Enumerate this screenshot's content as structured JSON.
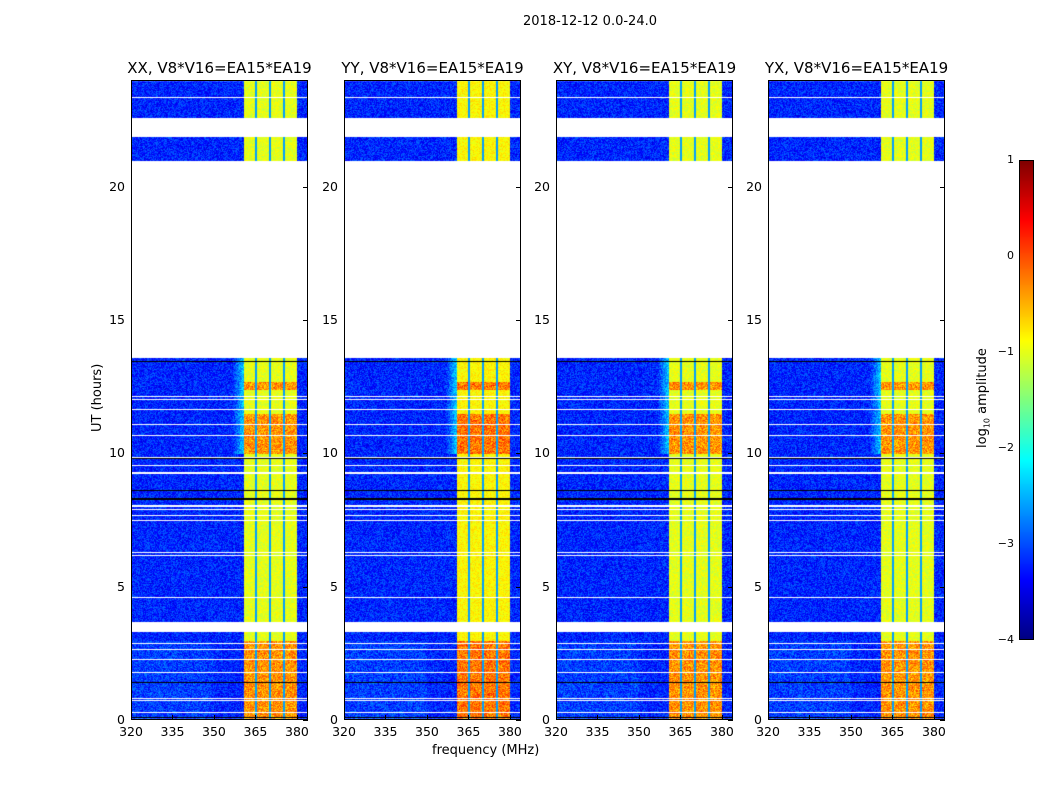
{
  "chart_data": {
    "type": "heatmap",
    "title": "2018-12-12 0.0-24.0",
    "xlabel": "frequency (MHz)",
    "ylabel": "UT (hours)",
    "xlim": [
      320,
      384
    ],
    "ylim": [
      0,
      24
    ],
    "xticks": [
      320,
      335,
      350,
      365,
      380
    ],
    "yticks": [
      0,
      5,
      10,
      15,
      20
    ],
    "panels": [
      {
        "title": "XX, V8*V16=EA15*EA19"
      },
      {
        "title": "YY, V8*V16=EA15*EA19"
      },
      {
        "title": "XY, V8*V16=EA15*EA19"
      },
      {
        "title": "YX, V8*V16=EA15*EA19"
      }
    ],
    "data_time_spans_hours": [
      [
        0,
        3.3
      ],
      [
        3.7,
        13.6
      ],
      [
        21.0,
        21.9
      ],
      [
        22.6,
        24
      ]
    ],
    "bright_band_mhz": [
      360.5,
      380
    ],
    "background_log_amplitude": -3.2,
    "band_log_amplitude": -1.0,
    "strong_rfi_hours": [
      [
        0,
        3
      ],
      [
        10,
        11.5
      ],
      [
        12.4,
        12.7
      ]
    ],
    "colorbar": {
      "label_main": "log",
      "label_sub": "10",
      "label_rest": " amplitude",
      "range": [
        -4,
        1
      ],
      "ticks": [
        1,
        0,
        -1,
        -2,
        -3,
        -4
      ],
      "tick_labels": [
        "1",
        "0",
        "−1",
        "−2",
        "−3",
        "−4"
      ],
      "colormap": "jet"
    }
  }
}
